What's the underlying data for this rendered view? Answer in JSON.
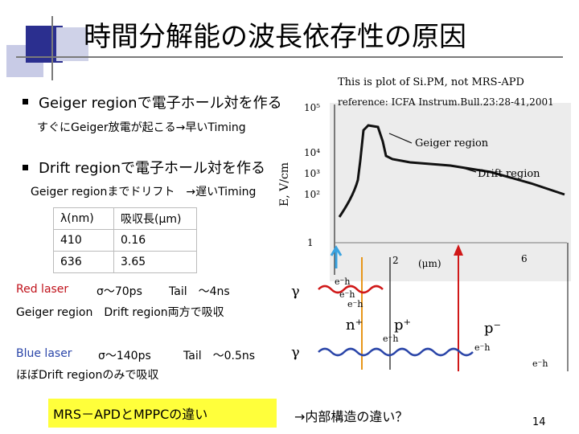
{
  "title": "時間分解能の波長依存性の原因",
  "bullets": [
    {
      "heading": "Geiger regionで電子ホール対を作る",
      "sub": "すぐにGeiger放電が起こる→早いTiming"
    },
    {
      "heading": "Drift regionで電子ホール対を作る",
      "sub": "Geiger regionまでドリフト　→遅いTiming"
    }
  ],
  "table": {
    "headers": [
      "λ(nm)",
      "吸収長(μm)"
    ],
    "rows": [
      [
        "410",
        "0.16"
      ],
      [
        "636",
        "3.65"
      ]
    ]
  },
  "red_laser": {
    "label": "Red laser",
    "sigma": "σ～70ps",
    "tail": "Tail　～4ns",
    "note": "Geiger region　Drift region両方で吸収"
  },
  "blue_laser": {
    "label": "Blue laser",
    "sigma": "σ～140ps",
    "tail": "Tail　～0.5ns",
    "note": "ほぼDrift regionのみで吸収"
  },
  "bottom": {
    "highlight": "MRS－APDとMPPCの違い",
    "arrow_text": "→内部構造の違い？",
    "page_number": "14"
  },
  "figure": {
    "note": "This is plot of Si.PM, not MRS-APD",
    "reference": "reference: ICFA Instrum.Bull.23:28-41,2001",
    "ylabel": "E, V/cm",
    "yticks": [
      "10⁵",
      "10⁴",
      "10³",
      "10²",
      "1"
    ],
    "xtick": "2",
    "xtick2": "6",
    "xlabel": "(μm)",
    "region_geiger": "Geiger region",
    "region_drift": "Drift region",
    "gamma": "γ",
    "eh": "e⁻h",
    "n_plus": "n⁺",
    "p_plus": "p⁺",
    "p_minus": "p⁻"
  },
  "colors": {
    "red": "#c0121b",
    "blue": "#2a45a8",
    "highlight": "#ffff3b",
    "deco_dark": "#2b2f8f"
  }
}
